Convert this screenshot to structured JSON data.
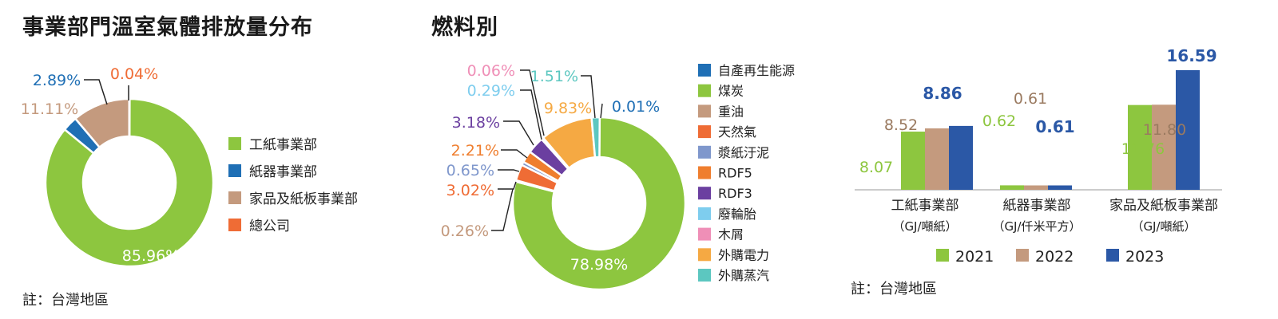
{
  "panel1": {
    "title": "事業部門溫室氣體排放量分布",
    "note": "註：台灣地區",
    "legend": [
      "工紙事業部",
      "紙器事業部",
      "家品及紙板事業部",
      "總公司"
    ]
  },
  "panel2": {
    "title": "燃料別",
    "legend": [
      "自產再生能源",
      "煤炭",
      "重油",
      "天然氣",
      "漿紙汙泥",
      "RDF5",
      "RDF3",
      "廢輪胎",
      "木屑",
      "外購電力",
      "外購蒸汽"
    ]
  },
  "panel3": {
    "note": "註：台灣地區"
  },
  "chart_data": [
    {
      "type": "pie",
      "title": "事業部門溫室氣體排放量分布",
      "categories": [
        "工紙事業部",
        "紙器事業部",
        "家品及紙板事業部",
        "總公司"
      ],
      "values": [
        85.96,
        2.89,
        11.11,
        0.04
      ],
      "labels": [
        "85.96%",
        "2.89%",
        "11.11%",
        "0.04%"
      ],
      "colors": [
        "#8dc63f",
        "#1f6fb5",
        "#c49a7e",
        "#ef6c35"
      ]
    },
    {
      "type": "pie",
      "title": "燃料別",
      "categories": [
        "自產再生能源",
        "煤炭",
        "重油",
        "天然氣",
        "漿紙汙泥",
        "RDF5",
        "RDF3",
        "廢輪胎",
        "木屑",
        "外購電力",
        "外購蒸汽"
      ],
      "values": [
        0.01,
        78.98,
        0.26,
        3.02,
        0.65,
        2.21,
        3.18,
        0.29,
        0.06,
        9.83,
        1.51
      ],
      "labels": [
        "0.01%",
        "78.98%",
        "0.26%",
        "3.02%",
        "0.65%",
        "2.21%",
        "3.18%",
        "0.29%",
        "0.06%",
        "9.83%",
        "1.51%"
      ],
      "colors": [
        "#1f6fb5",
        "#8dc63f",
        "#c49a7e",
        "#ef6c35",
        "#7f97cc",
        "#ef7e2e",
        "#6b3fa0",
        "#7ecdee",
        "#ef8fb7",
        "#f5a943",
        "#5cc7c0"
      ]
    },
    {
      "type": "bar",
      "categories": [
        "工紙事業部",
        "紙器事業部",
        "家品及紙板事業部"
      ],
      "category_units": [
        "（GJ/噸紙）",
        "（GJ/仟米平方）",
        "（GJ/噸紙）"
      ],
      "series": [
        {
          "name": "2021",
          "values": [
            8.07,
            0.62,
            11.76
          ],
          "color": "#8dc63f"
        },
        {
          "name": "2022",
          "values": [
            8.52,
            0.61,
            11.8
          ],
          "color": "#c49a7e"
        },
        {
          "name": "2023",
          "values": [
            8.86,
            0.61,
            16.59
          ],
          "color": "#2b58a6"
        }
      ],
      "value_labels": [
        [
          "8.07",
          "8.52",
          "8.86"
        ],
        [
          "0.62",
          "0.61",
          "0.61"
        ],
        [
          "11.76",
          "11.80",
          "16.59"
        ]
      ]
    }
  ]
}
